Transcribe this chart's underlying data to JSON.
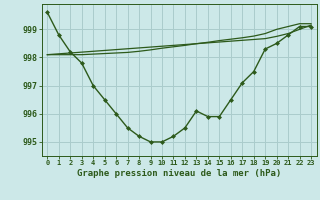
{
  "hours": [
    0,
    1,
    2,
    3,
    4,
    5,
    6,
    7,
    8,
    9,
    10,
    11,
    12,
    13,
    14,
    15,
    16,
    17,
    18,
    19,
    20,
    21,
    22,
    23
  ],
  "pressure_main": [
    999.6,
    998.8,
    998.2,
    997.8,
    997.0,
    996.5,
    996.0,
    995.5,
    995.2,
    995.0,
    995.0,
    995.2,
    995.5,
    996.1,
    995.9,
    995.9,
    996.5,
    997.1,
    997.5,
    998.3,
    998.5,
    998.8,
    999.1,
    999.1
  ],
  "pressure_trend": [
    998.1,
    998.13,
    998.16,
    998.19,
    998.22,
    998.25,
    998.28,
    998.31,
    998.34,
    998.37,
    998.4,
    998.43,
    998.46,
    998.49,
    998.52,
    998.55,
    998.58,
    998.61,
    998.64,
    998.67,
    998.75,
    998.85,
    999.0,
    999.15
  ],
  "pressure_upper": [
    998.1,
    998.1,
    998.1,
    998.1,
    998.12,
    998.14,
    998.16,
    998.18,
    998.22,
    998.27,
    998.33,
    998.38,
    998.43,
    998.49,
    998.54,
    998.6,
    998.65,
    998.7,
    998.76,
    998.85,
    999.0,
    999.1,
    999.2,
    999.2
  ],
  "line_color": "#2d5a1b",
  "bg_color": "#cce8e8",
  "grid_color": "#aacccc",
  "ylim": [
    994.5,
    999.9
  ],
  "yticks": [
    995,
    996,
    997,
    998,
    999
  ],
  "xlabel": "Graphe pression niveau de la mer (hPa)"
}
